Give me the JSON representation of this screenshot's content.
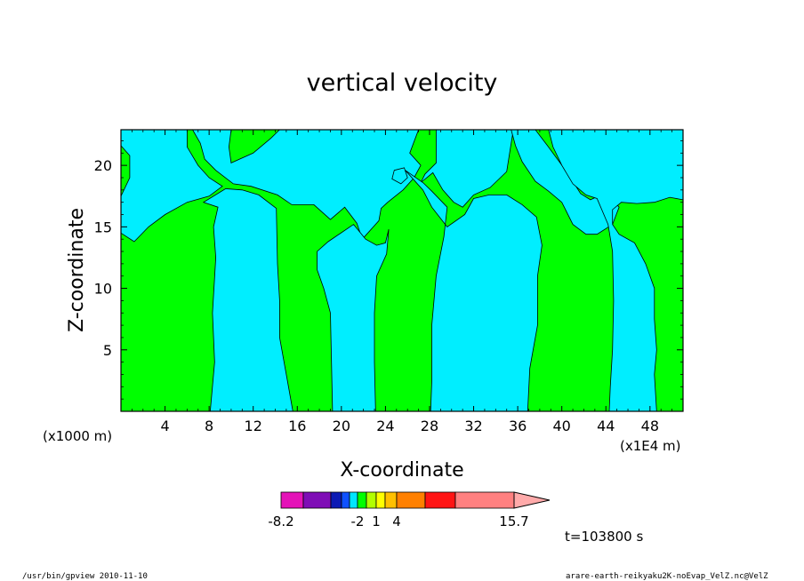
{
  "chart_data": {
    "type": "heatmap",
    "title": "vertical velocity",
    "xlabel": "X-coordinate",
    "ylabel": "Z-coordinate",
    "x_unit_left": "(x1000 m)",
    "x_unit_right": "(x1E4 m)",
    "xlim": [
      0,
      51
    ],
    "ylim": [
      0,
      22.9
    ],
    "x_ticks": [
      4,
      8,
      12,
      16,
      20,
      24,
      28,
      32,
      36,
      40,
      44,
      48
    ],
    "y_ticks": [
      5,
      10,
      15,
      20
    ],
    "time_label": "t=103800 s",
    "colorbar": {
      "colors": [
        "#e413b8",
        "#7f0db6",
        "#0d1ab4",
        "#0f51ff",
        "#00e5ff",
        "#00ff00",
        "#b2ff00",
        "#ffff00",
        "#ffc000",
        "#ff8000",
        "#ff1414",
        "#ff8080"
      ],
      "extend_color": "#ffaaaa",
      "labels": [
        "-8.2",
        "-2",
        "1",
        "4",
        "15.7"
      ]
    },
    "regions": {
      "positive_color": "#00ff00",
      "negative_color": "#00eeff"
    },
    "negative_regions": [
      [
        [
          0,
          22.9
        ],
        [
          6,
          22.9
        ],
        [
          6,
          21.5
        ],
        [
          7,
          20
        ],
        [
          8,
          19
        ],
        [
          9.2,
          18.3
        ],
        [
          8,
          17.5
        ],
        [
          6,
          17
        ],
        [
          4,
          16
        ],
        [
          2.5,
          15
        ],
        [
          1.2,
          13.8
        ],
        [
          0,
          14.5
        ],
        [
          0,
          17.5
        ],
        [
          0.8,
          19
        ],
        [
          0.8,
          20.8
        ],
        [
          0,
          21.6
        ]
      ],
      [
        [
          6.5,
          22.9
        ],
        [
          10,
          22.9
        ],
        [
          9.8,
          21.5
        ],
        [
          10,
          20.2
        ],
        [
          12,
          21
        ],
        [
          13.6,
          22.2
        ],
        [
          14.4,
          22.9
        ],
        [
          27,
          22.9
        ],
        [
          26.2,
          21
        ],
        [
          27.2,
          20
        ],
        [
          26.6,
          19
        ],
        [
          25.6,
          18
        ],
        [
          24.2,
          17
        ],
        [
          23.6,
          16.5
        ],
        [
          23.4,
          15.5
        ],
        [
          21.9,
          14
        ],
        [
          21.4,
          15.3
        ],
        [
          20.3,
          16.6
        ],
        [
          19,
          15.6
        ],
        [
          17.5,
          16.8
        ],
        [
          15.5,
          16.8
        ],
        [
          14.2,
          17.6
        ],
        [
          11.8,
          18.3
        ],
        [
          10.2,
          18.5
        ],
        [
          8.6,
          19.6
        ],
        [
          7.6,
          20.5
        ],
        [
          7.2,
          21.8
        ]
      ],
      [
        [
          7.5,
          17
        ],
        [
          8.8,
          16.6
        ],
        [
          8.4,
          15
        ],
        [
          8.6,
          12.5
        ],
        [
          8.3,
          8
        ],
        [
          8.5,
          4
        ],
        [
          8.1,
          0
        ],
        [
          15.6,
          0
        ],
        [
          15,
          3
        ],
        [
          14.4,
          6
        ],
        [
          14.4,
          9
        ],
        [
          14.2,
          12
        ],
        [
          14.1,
          16.5
        ],
        [
          12.5,
          17.6
        ],
        [
          11,
          18
        ],
        [
          9.5,
          18.1
        ]
      ],
      [
        [
          17.8,
          13
        ],
        [
          18.8,
          13.8
        ],
        [
          21.1,
          15.2
        ],
        [
          22.2,
          14
        ],
        [
          23.2,
          13.5
        ],
        [
          24,
          13.7
        ],
        [
          24.3,
          14.8
        ],
        [
          24.1,
          12.8
        ],
        [
          23.2,
          11
        ],
        [
          23,
          8
        ],
        [
          23,
          4
        ],
        [
          23.1,
          0
        ],
        [
          19.2,
          0
        ],
        [
          19.1,
          4
        ],
        [
          19,
          8
        ],
        [
          18.4,
          10
        ],
        [
          17.8,
          11.5
        ]
      ],
      [
        [
          27.2,
          18.6
        ],
        [
          28.3,
          19.4
        ],
        [
          29.2,
          18
        ],
        [
          30.2,
          17
        ],
        [
          31,
          16.6
        ],
        [
          32,
          17.6
        ],
        [
          33.5,
          18.2
        ],
        [
          35,
          19.5
        ],
        [
          35.6,
          22.9
        ],
        [
          28.6,
          22.9
        ],
        [
          28.6,
          20.2
        ],
        [
          27.6,
          19.3
        ]
      ],
      [
        [
          25.8,
          19.6
        ],
        [
          27.4,
          18.6
        ],
        [
          28.2,
          17.9
        ],
        [
          29.6,
          16.6
        ],
        [
          29.3,
          14.2
        ],
        [
          28.6,
          11
        ],
        [
          28.2,
          7
        ],
        [
          28.2,
          2.5
        ],
        [
          28.1,
          0
        ],
        [
          36.9,
          0
        ],
        [
          37.1,
          3.5
        ],
        [
          37.8,
          7
        ],
        [
          37.8,
          11
        ],
        [
          38.2,
          13.5
        ],
        [
          37.7,
          15.8
        ],
        [
          36.4,
          16.8
        ],
        [
          35,
          17.6
        ],
        [
          33.4,
          17.6
        ],
        [
          32,
          17.3
        ],
        [
          31.2,
          16
        ],
        [
          29.6,
          15
        ],
        [
          28.2,
          16.6
        ],
        [
          27.4,
          18
        ]
      ],
      [
        [
          35.4,
          22.9
        ],
        [
          37.6,
          22.9
        ],
        [
          38.7,
          21.6
        ],
        [
          40.5,
          19.4
        ],
        [
          41.7,
          17.7
        ],
        [
          42.6,
          17.2
        ],
        [
          44,
          17.8
        ],
        [
          45.2,
          16.6
        ],
        [
          44.6,
          15.2
        ],
        [
          43.2,
          14.4
        ],
        [
          42.2,
          14.4
        ],
        [
          41,
          15.2
        ],
        [
          40,
          17
        ],
        [
          38.8,
          17.9
        ],
        [
          37.6,
          18.7
        ],
        [
          36.4,
          20.3
        ],
        [
          35.8,
          21.6
        ]
      ],
      [
        [
          38.8,
          22.9
        ],
        [
          51,
          22.9
        ],
        [
          51,
          17.2
        ],
        [
          49.8,
          17.4
        ],
        [
          48.4,
          17
        ],
        [
          46.8,
          16.9
        ],
        [
          45.4,
          17
        ],
        [
          44.6,
          16.4
        ],
        [
          44.6,
          15.2
        ],
        [
          45.2,
          14.4
        ],
        [
          46.6,
          13.7
        ],
        [
          47.6,
          12
        ],
        [
          48.4,
          10
        ],
        [
          48.4,
          7.5
        ],
        [
          48.6,
          5
        ],
        [
          48.4,
          3
        ],
        [
          48.6,
          0
        ],
        [
          44.3,
          0
        ],
        [
          44.4,
          2
        ],
        [
          44.6,
          5
        ],
        [
          44.7,
          9
        ],
        [
          44.6,
          13
        ],
        [
          44.2,
          15.2
        ],
        [
          43.2,
          17.3
        ],
        [
          42.2,
          17.6
        ],
        [
          41,
          18.5
        ],
        [
          40,
          20
        ],
        [
          39.2,
          21.5
        ]
      ],
      [
        [
          24.8,
          19.6
        ],
        [
          25.7,
          19.8
        ],
        [
          26,
          19
        ],
        [
          25.4,
          18.5
        ],
        [
          24.6,
          18.9
        ]
      ]
    ],
    "footer_left": "/usr/bin/gpview  2010-11-10",
    "footer_right": "arare-earth-reikyaku2K-noEvap_VelZ.nc@VelZ"
  }
}
